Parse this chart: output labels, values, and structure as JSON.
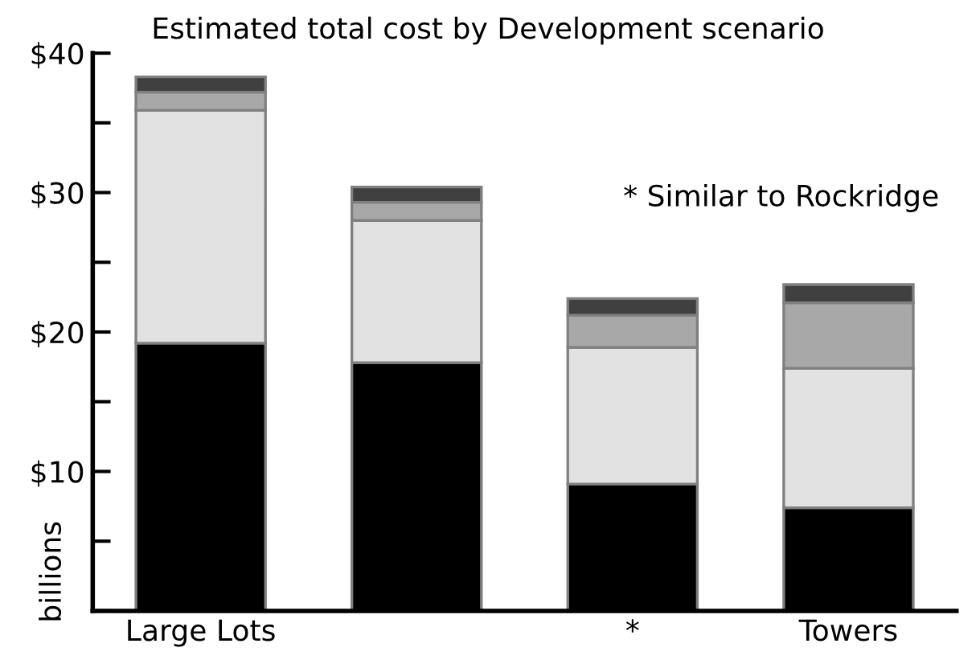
{
  "chart_data": {
    "type": "bar",
    "stacked": true,
    "title": "Estimated total cost by Development scenario",
    "ylabel": "billions",
    "categories": [
      "Large Lots",
      null,
      "*",
      "Towers"
    ],
    "series": [
      {
        "color": "#000000",
        "values": [
          19.2,
          17.8,
          9.1,
          7.4
        ]
      },
      {
        "color": "#e2e2e2",
        "values": [
          16.7,
          10.2,
          9.8,
          10.0
        ]
      },
      {
        "color": "#a8a8a8",
        "values": [
          1.3,
          1.3,
          2.3,
          4.7
        ]
      },
      {
        "color": "#404040",
        "values": [
          1.1,
          1.1,
          1.2,
          1.3
        ]
      }
    ],
    "ylim": [
      0,
      40
    ],
    "yticks": [
      {
        "value": 0,
        "label": null
      },
      {
        "value": 5,
        "label": null
      },
      {
        "value": 10,
        "label": "$10"
      },
      {
        "value": 15,
        "label": null
      },
      {
        "value": 20,
        "label": "$20"
      },
      {
        "value": 25,
        "label": null
      },
      {
        "value": 30,
        "label": "$30"
      },
      {
        "value": 35,
        "label": null
      },
      {
        "value": 40,
        "label": "$40"
      }
    ],
    "annotations": [
      "* Similar to Rockridge"
    ],
    "grid": false,
    "legend": false
  }
}
